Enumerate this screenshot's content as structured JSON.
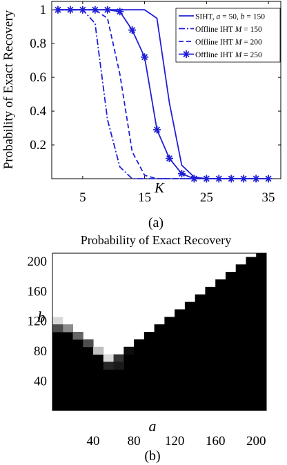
{
  "chart_data": [
    {
      "type": "line",
      "panel_label": "(a)",
      "xlabel": "K",
      "ylabel": "Probability of Exact Recovery",
      "xlim": [
        0,
        37
      ],
      "ylim": [
        0,
        1.05
      ],
      "xticks": [
        5,
        15,
        25,
        35
      ],
      "yticks": [
        0.2,
        0.4,
        0.6,
        0.8,
        1
      ],
      "x_tick_labels": [
        "5",
        "15",
        "25",
        "35"
      ],
      "y_tick_labels": [
        "0.2",
        "0.4",
        "0.6",
        "0.8",
        "1"
      ],
      "grid": false,
      "legend_position": "top-right",
      "color": "#1f1fd6",
      "series": [
        {
          "name": "SIHT, a = 50, b = 150",
          "legend_parts": [
            "SIHT, ",
            "a",
            " = 50, ",
            "b",
            " = 150"
          ],
          "style": "solid",
          "marker": "none",
          "x": [
            1,
            3,
            5,
            7,
            9,
            11,
            13,
            15,
            17,
            19,
            21,
            23,
            25,
            27,
            29,
            31,
            33,
            35
          ],
          "y": [
            1,
            1,
            1,
            1,
            1,
            1,
            1,
            1,
            0.95,
            0.45,
            0.08,
            0.01,
            0,
            0,
            0,
            0,
            0,
            0
          ]
        },
        {
          "name": "Offline IHT M = 150",
          "legend_parts": [
            "Offline IHT ",
            "M",
            " = 150"
          ],
          "style": "dashdot",
          "marker": "none",
          "x": [
            1,
            3,
            5,
            7,
            9,
            11,
            13,
            15,
            17,
            19,
            21,
            23,
            25,
            27,
            29,
            31,
            33,
            35
          ],
          "y": [
            1,
            1,
            1,
            0.92,
            0.35,
            0.07,
            0,
            0,
            0,
            0,
            0,
            0,
            0,
            0,
            0,
            0,
            0,
            0
          ]
        },
        {
          "name": "Offline IHT M = 200",
          "legend_parts": [
            "Offline IHT ",
            "M",
            " = 200"
          ],
          "style": "dashed",
          "marker": "none",
          "x": [
            1,
            3,
            5,
            7,
            9,
            11,
            13,
            15,
            17,
            19,
            21,
            23,
            25,
            27,
            29,
            31,
            33,
            35
          ],
          "y": [
            1,
            1,
            1,
            1,
            0.95,
            0.62,
            0.16,
            0.02,
            0,
            0,
            0,
            0,
            0,
            0,
            0,
            0,
            0,
            0
          ]
        },
        {
          "name": "Offline IHT M = 250",
          "legend_parts": [
            "Offline IHT ",
            "M",
            " = 250"
          ],
          "style": "solid",
          "marker": "asterisk",
          "x": [
            1,
            3,
            5,
            7,
            9,
            11,
            13,
            15,
            17,
            19,
            21,
            23,
            25,
            27,
            29,
            31,
            33,
            35
          ],
          "y": [
            1,
            1,
            1,
            1,
            1,
            0.99,
            0.88,
            0.72,
            0.29,
            0.12,
            0.03,
            0,
            0,
            0,
            0,
            0,
            0,
            0
          ]
        }
      ]
    },
    {
      "type": "heatmap",
      "panel_label": "(b)",
      "title": "Probability of Exact Recovery",
      "xlabel": "a",
      "ylabel": "b",
      "xlim": [
        0,
        210
      ],
      "ylim": [
        0,
        210
      ],
      "xticks": [
        40,
        80,
        120,
        160,
        200
      ],
      "yticks": [
        40,
        80,
        120,
        160,
        200
      ],
      "x_tick_labels": [
        "40",
        "80",
        "120",
        "160",
        "200"
      ],
      "y_tick_labels": [
        "40",
        "80",
        "120",
        "160",
        "200"
      ],
      "cell_size": 10,
      "colormap": "gray (0 = black, 1 = white)",
      "boundary": {
        "description": "lowest b with non-black cell per a-column; cells below are black (0), cells at boundary take listed value, above are white (1)",
        "a_centers": [
          5,
          15,
          25,
          35,
          45,
          55,
          65,
          75,
          85,
          95,
          105,
          115,
          125,
          135,
          145,
          155,
          165,
          175,
          185,
          195,
          205
        ],
        "boundary_b": [
          120,
          110,
          100,
          90,
          80,
          70,
          70,
          80,
          90,
          100,
          110,
          120,
          130,
          140,
          150,
          160,
          170,
          180,
          190,
          200,
          210
        ],
        "boundary_value": [
          0.85,
          0.55,
          0.4,
          0.3,
          0.75,
          0.85,
          0.2,
          0.05,
          0,
          0,
          0,
          0,
          0,
          0,
          0,
          0,
          0,
          0,
          0,
          0,
          0
        ],
        "extra_gray_cells": [
          {
            "a": 5,
            "b": 110,
            "value": 0.3
          },
          {
            "a": 55,
            "b": 60,
            "value": 0.15
          },
          {
            "a": 65,
            "b": 60,
            "value": 0.1
          }
        ]
      }
    }
  ]
}
